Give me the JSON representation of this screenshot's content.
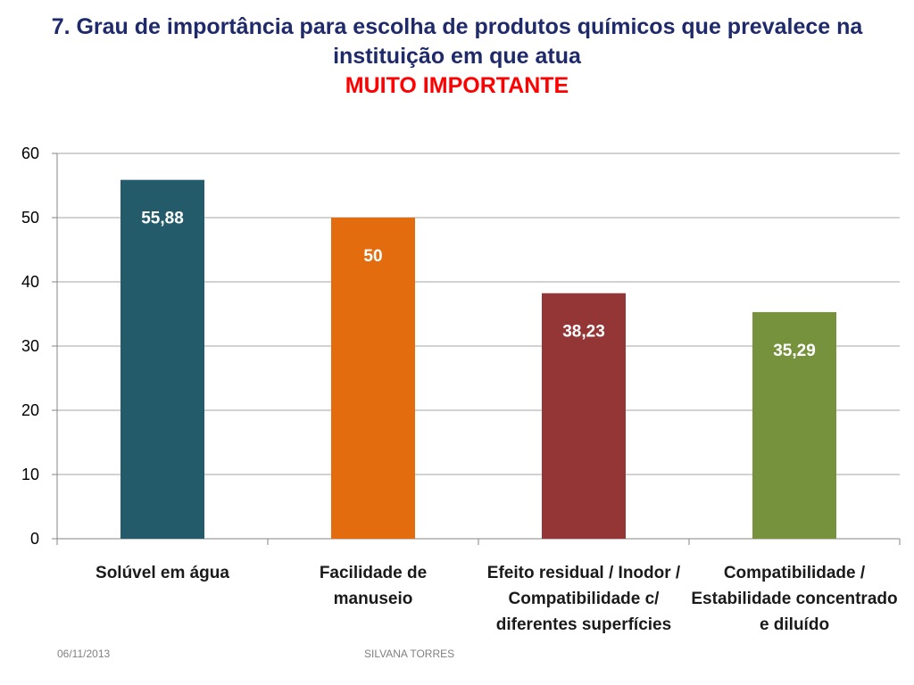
{
  "title": "7. Grau de importância para escolha de produtos químicos que prevalece na instituição em que atua",
  "subtitle": "MUITO IMPORTANTE",
  "footer": {
    "date": "06/11/2013",
    "author": "SILVANA TORRES"
  },
  "colors": {
    "title": "#1f2a6b",
    "subtitle": "#ff0000",
    "grid": "#a6a6a6"
  },
  "chart_data": {
    "type": "bar",
    "categories": [
      "Solúvel em água",
      "Facilidade de manuseio",
      "Efeito residual / Inodor / Compatibilidade c/ diferentes superfícies",
      "Compatibilidade / Estabilidade concentrado e diluído"
    ],
    "values": [
      55.88,
      50,
      38.23,
      35.29
    ],
    "data_labels": [
      "55,88",
      "50",
      "38,23",
      "35,29"
    ],
    "bar_colors": [
      "#245b6b",
      "#e36c0e",
      "#943635",
      "#77923c"
    ],
    "ylim": [
      0,
      60
    ],
    "yticks": [
      0,
      10,
      20,
      30,
      40,
      50,
      60
    ],
    "grid": true,
    "legend": "none"
  }
}
